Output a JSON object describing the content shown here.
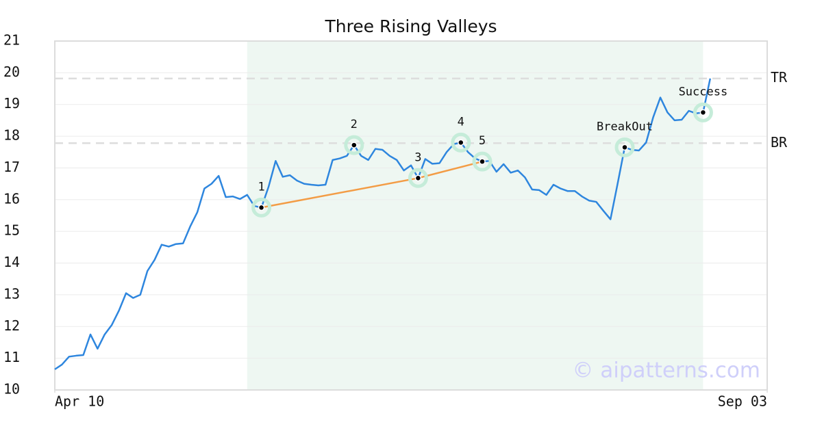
{
  "chart_data": {
    "type": "line",
    "title": "Three Rising Valleys",
    "color": "#2e86de",
    "x": [
      0,
      1,
      2,
      3,
      4,
      5,
      6,
      7,
      8,
      9,
      10,
      11,
      12,
      13,
      14,
      15,
      16,
      17,
      18,
      19,
      20,
      21,
      22,
      23,
      24,
      25,
      26,
      27,
      28,
      29,
      30,
      31,
      32,
      33,
      34,
      35,
      36,
      37,
      38,
      39,
      40,
      41,
      42,
      43,
      44,
      45,
      46,
      47,
      48,
      49,
      50,
      51,
      52,
      53,
      54,
      55,
      56,
      57,
      58,
      59,
      60,
      61,
      62,
      63,
      64,
      65,
      66,
      67,
      68,
      69,
      70,
      71,
      72,
      73,
      74,
      75,
      76,
      77,
      78,
      79,
      80,
      81,
      82,
      83,
      84,
      85,
      86,
      87,
      88,
      89,
      90,
      91,
      92
    ],
    "values": [
      10.65,
      10.8,
      11.05,
      11.08,
      11.1,
      11.75,
      11.3,
      11.75,
      12.05,
      12.5,
      13.05,
      12.9,
      13.0,
      13.75,
      14.1,
      14.58,
      14.52,
      14.6,
      14.62,
      15.15,
      15.6,
      16.35,
      16.5,
      16.75,
      16.08,
      16.1,
      16.02,
      16.15,
      15.8,
      15.75,
      16.4,
      17.22,
      16.72,
      16.77,
      16.6,
      16.5,
      16.47,
      16.45,
      16.47,
      17.25,
      17.3,
      17.38,
      17.72,
      17.38,
      17.25,
      17.6,
      17.57,
      17.38,
      17.25,
      16.92,
      17.08,
      16.68,
      17.28,
      17.13,
      17.15,
      17.5,
      17.75,
      17.8,
      17.5,
      17.3,
      17.2,
      17.22,
      16.88,
      17.12,
      16.85,
      16.92,
      16.7,
      16.32,
      16.3,
      16.15,
      16.47,
      16.35,
      16.27,
      16.27,
      16.1,
      15.97,
      15.93,
      15.65,
      15.38,
      16.5,
      17.65,
      17.57,
      17.55,
      17.8,
      18.6,
      19.22,
      18.75,
      18.5,
      18.52,
      18.8,
      18.72,
      18.75,
      19.82
    ],
    "xlim": [
      0,
      100
    ],
    "xticks": [
      {
        "value": 0,
        "label": "Apr 10"
      },
      {
        "value": 100,
        "label": "Sep 03"
      }
    ],
    "ylim": [
      10,
      21
    ],
    "yticks": [
      10,
      11,
      12,
      13,
      14,
      15,
      16,
      17,
      18,
      19,
      20,
      21
    ],
    "grid": true,
    "highlight": [
      27,
      91
    ],
    "levels": [
      {
        "label": "TR",
        "value": 19.82
      },
      {
        "label": "BR",
        "value": 17.78
      }
    ],
    "trendline": {
      "color": "#f39c45",
      "x": [
        29,
        51,
        60
      ],
      "y": [
        15.75,
        16.68,
        17.2
      ]
    },
    "points": [
      {
        "label": "1",
        "x": 29,
        "y": 15.75
      },
      {
        "label": "2",
        "x": 42,
        "y": 17.72
      },
      {
        "label": "3",
        "x": 51,
        "y": 16.68
      },
      {
        "label": "4",
        "x": 57,
        "y": 17.8
      },
      {
        "label": "5",
        "x": 60,
        "y": 17.2
      },
      {
        "label": "BreakOut",
        "x": 80,
        "y": 17.65
      },
      {
        "label": "Success",
        "x": 91,
        "y": 18.75
      }
    ],
    "watermark": "© aipatterns.com"
  }
}
